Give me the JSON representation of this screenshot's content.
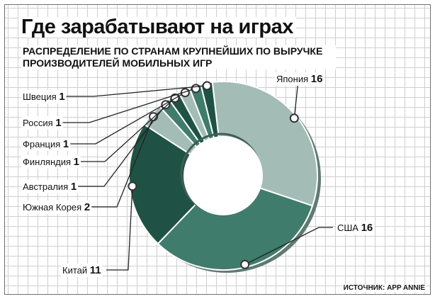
{
  "title": "Где зарабатывают на играх",
  "subtitle": "РАСПРЕДЕЛЕНИЕ ПО СТРАНАМ КРУПНЕЙШИХ ПО ВЫРУЧКЕ ПРОИЗВОДИТЕЛЕЙ МОБИЛЬНЫХ ИГР",
  "source": "ИСТОЧНИК: APP ANNIE",
  "chart_data": {
    "type": "pie",
    "variant": "donut",
    "title": "Где зарабатывают на играх",
    "subtitle": "РАСПРЕДЕЛЕНИЕ ПО СТРАНАМ КРУПНЕЙШИХ ПО ВЫРУЧКЕ ПРОИЗВОДИТЕЛЕЙ МОБИЛЬНЫХ ИГР",
    "slices": [
      {
        "label": "Япония",
        "value": 16,
        "color": "#a4bcb6"
      },
      {
        "label": "США",
        "value": 16,
        "color": "#3f7c6c"
      },
      {
        "label": "Китай",
        "value": 11,
        "color": "#1f5244"
      },
      {
        "label": "Южная Корея",
        "value": 2,
        "color": "#a4bcb6"
      },
      {
        "label": "Австралия",
        "value": 1,
        "color": "#3f7c6c"
      },
      {
        "label": "Финляндия",
        "value": 1,
        "color": "#1f5244"
      },
      {
        "label": "Франция",
        "value": 1,
        "color": "#a4bcb6"
      },
      {
        "label": "Россия",
        "value": 1,
        "color": "#3f7c6c"
      },
      {
        "label": "Швеция",
        "value": 1,
        "color": "#1f5244"
      }
    ],
    "grid": true,
    "legend": "none"
  }
}
